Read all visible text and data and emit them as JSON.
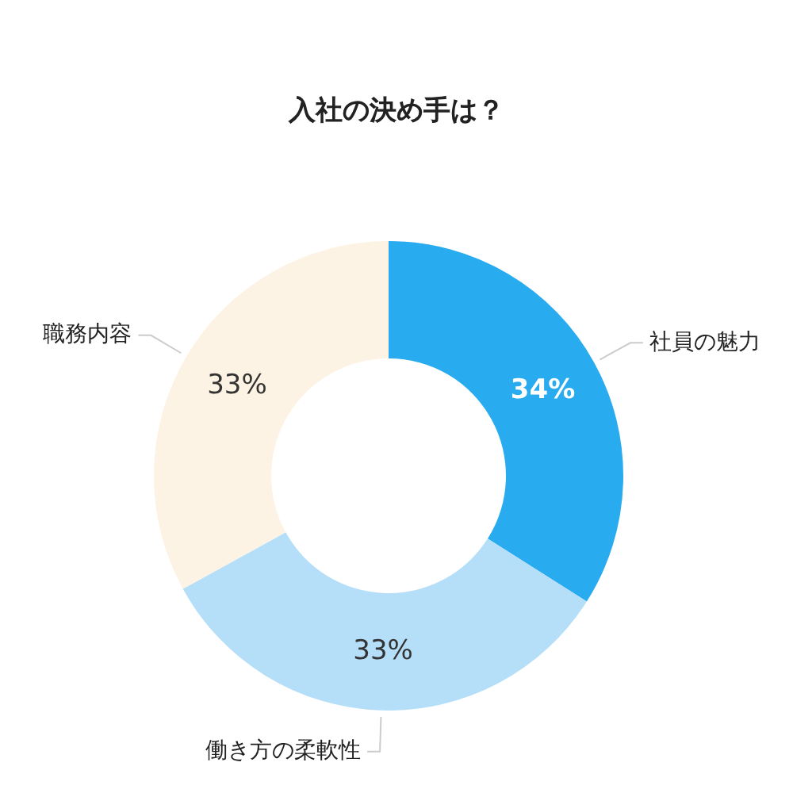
{
  "chart_data": {
    "type": "donut",
    "title": "入社の決め手は？",
    "categories": [
      "社員の魅力",
      "働き方の柔軟性",
      "職務内容"
    ],
    "values": [
      34,
      33,
      33
    ],
    "value_labels": [
      "34%",
      "33%",
      "33%"
    ],
    "colors": [
      "#29abf0",
      "#b5def9",
      "#fdf3e4"
    ],
    "legend": false
  }
}
